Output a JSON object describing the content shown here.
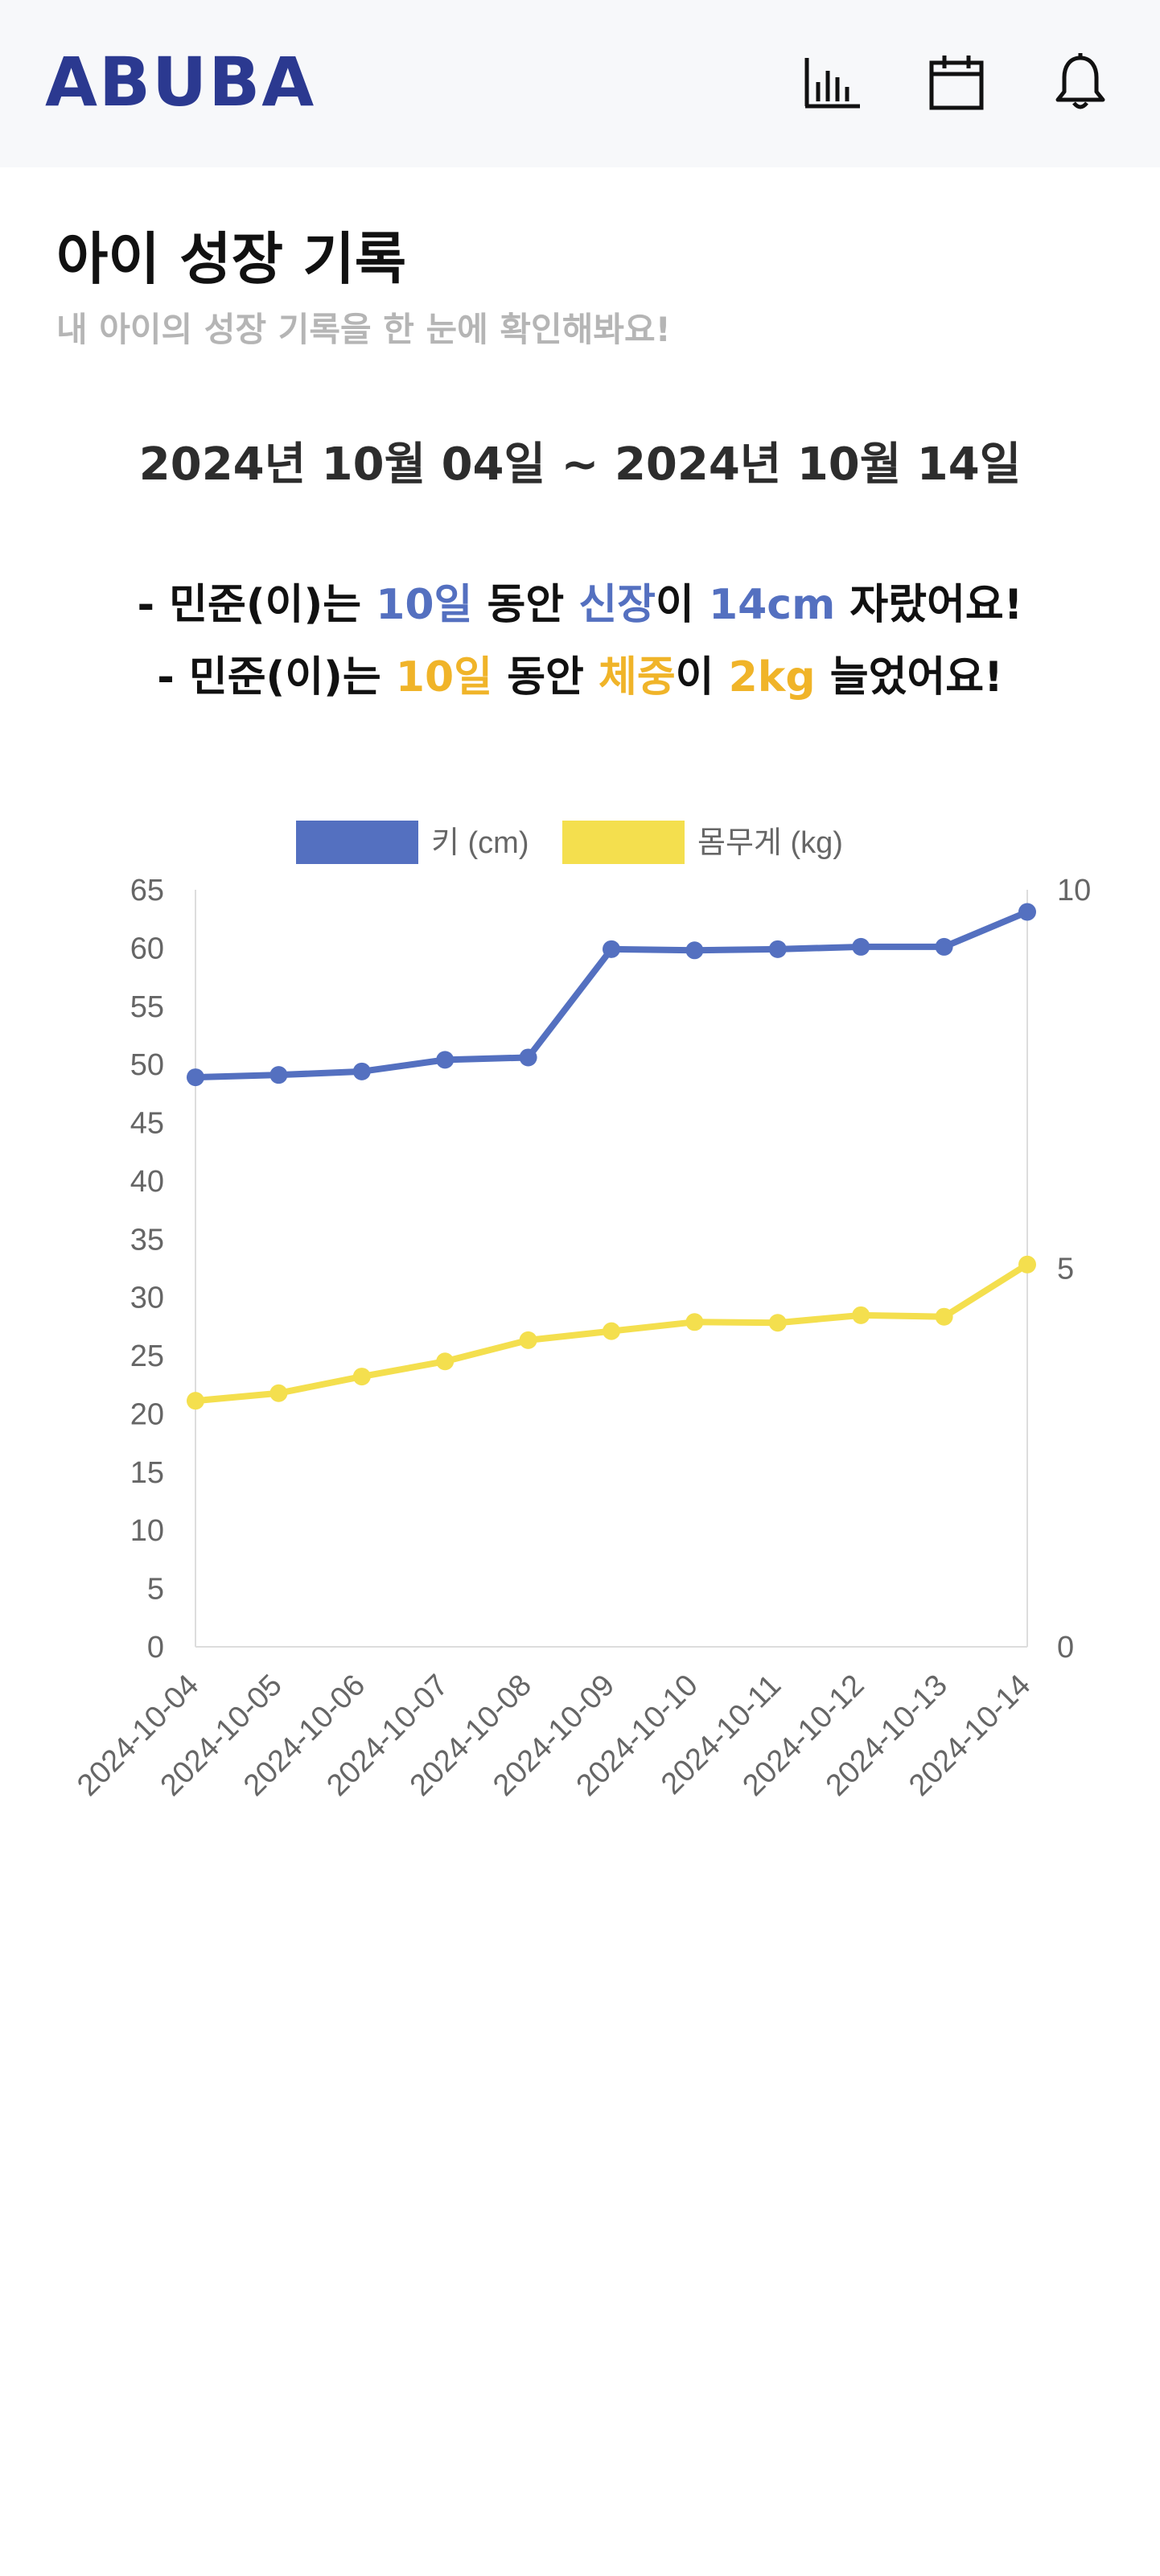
{
  "header": {
    "logo": "ABUBA",
    "icons": [
      "bar-chart-icon",
      "calendar-icon",
      "bell-icon"
    ]
  },
  "page": {
    "title": "아이 성장 기록",
    "subtitle": "내 아이의 성장 기록을 한 눈에 확인해봐요!",
    "date_range": "2024년 10월 04일 ~ 2024년 10월 14일"
  },
  "summary": {
    "height": {
      "prefix": "- 민준(이)는 ",
      "days": "10일",
      "mid1": " 동안 ",
      "metric": "신장",
      "mid2": "이 ",
      "amount": "14cm",
      "suffix": " 자랐어요!"
    },
    "weight": {
      "prefix": "- 민준(이)는 ",
      "days": "10일",
      "mid1": " 동안 ",
      "metric": "체중",
      "mid2": "이 ",
      "amount": "2kg",
      "suffix": " 늘었어요!"
    }
  },
  "colors": {
    "height_series": "#5470c0",
    "weight_series": "#f4df4e",
    "highlight_blue": "#5470c0",
    "highlight_yellow": "#f0b429"
  },
  "chart_data": {
    "type": "line",
    "title": "",
    "x": [
      "2024-10-04",
      "2024-10-05",
      "2024-10-06",
      "2024-10-07",
      "2024-10-08",
      "2024-10-09",
      "2024-10-10",
      "2024-10-11",
      "2024-10-12",
      "2024-10-13",
      "2024-10-14"
    ],
    "series": [
      {
        "name": "키 (cm)",
        "axis": "left",
        "values": [
          48.9,
          49.1,
          49.4,
          50.4,
          50.6,
          59.9,
          59.8,
          59.9,
          60.1,
          60.1,
          63.1
        ]
      },
      {
        "name": "몸무게 (kg)",
        "axis": "right",
        "values": [
          3.25,
          3.35,
          3.57,
          3.77,
          4.05,
          4.17,
          4.29,
          4.28,
          4.38,
          4.36,
          5.05
        ]
      }
    ],
    "y_left": {
      "label": "",
      "min": 0,
      "max": 65,
      "ticks": [
        0,
        5,
        10,
        15,
        20,
        25,
        30,
        35,
        40,
        45,
        50,
        55,
        60,
        65
      ]
    },
    "y_right": {
      "label": "",
      "min": 0,
      "max": 10,
      "ticks": [
        0,
        5,
        10
      ]
    },
    "legend": "top-center",
    "grid": false
  }
}
